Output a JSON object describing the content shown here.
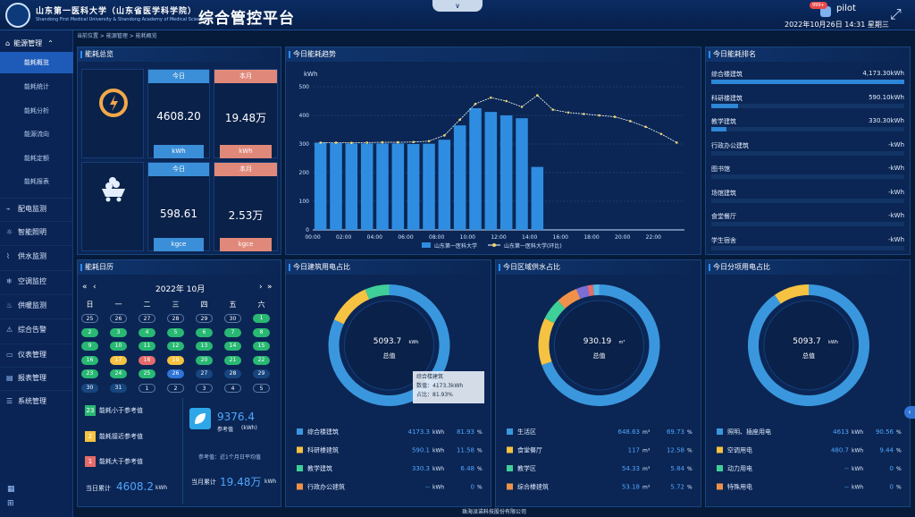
{
  "header": {
    "school_cn": "山东第一医科大学（山东省医学科学院）",
    "school_en": "Shandong First Medical University & Shandong Academy of Medical Sciences",
    "app_title": "综合管控平台",
    "dropdown": "∨",
    "badge": "999+",
    "user": "pilot",
    "datetime": "2022年10月26日 14:31 星期三",
    "fullscreen": "⤢"
  },
  "sidebar": {
    "top_menu": "能源管理",
    "subitems": [
      "能耗概览",
      "能耗统计",
      "能耗分析",
      "能源流向",
      "能耗定额",
      "能耗报表"
    ],
    "menus": [
      "配电监测",
      "智能照明",
      "供水监测",
      "空调监控",
      "供暖监测",
      "综合告警",
      "仪表管理",
      "报表管理",
      "系统管理"
    ],
    "icons": [
      "plug-icon",
      "bulb-icon",
      "faucet-icon",
      "snowflake-icon",
      "flame-icon",
      "alarm-icon",
      "meter-icon",
      "report-icon",
      "database-icon"
    ]
  },
  "breadcrumb": [
    "当前位置",
    "能源管理",
    "能耗概览"
  ],
  "overview": {
    "title": "能耗总览",
    "today": "今日",
    "month": "本月",
    "elec_today": "4608.20",
    "elec_month": "19.48万",
    "elec_unit": "kWh",
    "coal_today": "598.61",
    "coal_month": "2.53万",
    "coal_unit": "kgce"
  },
  "trend": {
    "title": "今日能耗趋势",
    "unit": "kWh",
    "legend_bar": "山东第一医科大学",
    "legend_line": "山东第一医科大学(环比)"
  },
  "chart_data": {
    "type": "bar",
    "title": "今日能耗趋势",
    "ylabel": "kWh",
    "ylim": [
      0,
      500
    ],
    "yticks": [
      0,
      100,
      200,
      300,
      400,
      500
    ],
    "xticks": [
      "00:00",
      "02:00",
      "04:00",
      "06:00",
      "08:00",
      "10:00",
      "12:00",
      "14:00",
      "16:00",
      "18:00",
      "20:00",
      "22:00"
    ],
    "series": [
      {
        "name": "山东第一医科大学",
        "type": "bar",
        "x": [
          0,
          1,
          2,
          3,
          4,
          5,
          6,
          7,
          8,
          9,
          10,
          11,
          12,
          13,
          14
        ],
        "values": [
          305,
          303,
          302,
          302,
          302,
          302,
          300,
          301,
          315,
          365,
          425,
          412,
          400,
          390,
          220
        ]
      },
      {
        "name": "山东第一医科大学(环比)",
        "type": "line",
        "x": [
          0,
          1,
          2,
          3,
          4,
          5,
          6,
          7,
          8,
          9,
          10,
          11,
          12,
          13,
          14,
          15,
          16,
          17,
          18,
          19,
          20,
          21,
          22,
          23
        ],
        "values": [
          305,
          305,
          304,
          305,
          306,
          306,
          307,
          310,
          330,
          385,
          440,
          462,
          450,
          430,
          470,
          420,
          410,
          405,
          400,
          395,
          380,
          360,
          335,
          305
        ]
      }
    ]
  },
  "ranking": {
    "title": "今日能耗排名",
    "rows": [
      {
        "name": "综合楼建筑",
        "value": "4,173.30kWh",
        "pct": 100
      },
      {
        "name": "科研楼建筑",
        "value": "590.10kWh",
        "pct": 14
      },
      {
        "name": "教学建筑",
        "value": "330.30kWh",
        "pct": 8
      },
      {
        "name": "行政办公建筑",
        "value": "-kWh",
        "pct": 0
      },
      {
        "name": "图书馆",
        "value": "-kWh",
        "pct": 0
      },
      {
        "name": "场馆建筑",
        "value": "-kWh",
        "pct": 0
      },
      {
        "name": "食堂餐厅",
        "value": "-kWh",
        "pct": 0
      },
      {
        "name": "学生宿舍",
        "value": "-kWh",
        "pct": 0
      }
    ]
  },
  "calendar": {
    "title": "能耗日历",
    "month": "2022年 10月",
    "nav_prev2": "«",
    "nav_prev": "‹",
    "nav_next": "›",
    "nav_next2": "»",
    "weekdays": [
      "日",
      "一",
      "二",
      "三",
      "四",
      "五",
      "六"
    ],
    "rows": [
      [
        "25",
        "26",
        "27",
        "28",
        "29",
        "30",
        "1"
      ],
      [
        "2",
        "3",
        "4",
        "5",
        "6",
        "7",
        "8"
      ],
      [
        "9",
        "10",
        "11",
        "12",
        "13",
        "14",
        "15"
      ],
      [
        "16",
        "17",
        "18",
        "19",
        "20",
        "21",
        "22"
      ],
      [
        "23",
        "24",
        "25",
        "26",
        "27",
        "28",
        "29"
      ],
      [
        "30",
        "31",
        "1",
        "2",
        "3",
        "4",
        "5"
      ]
    ],
    "states": [
      [
        "o",
        "o",
        "o",
        "o",
        "o",
        "o",
        "g"
      ],
      [
        "g",
        "g",
        "g",
        "g",
        "g",
        "g",
        "g"
      ],
      [
        "g",
        "g",
        "g",
        "g",
        "g",
        "g",
        "g"
      ],
      [
        "g",
        "y",
        "r",
        "y",
        "g",
        "g",
        "g"
      ],
      [
        "g",
        "g",
        "g",
        "b",
        "d",
        "d",
        "d"
      ],
      [
        "d",
        "d",
        "o",
        "o",
        "o",
        "o",
        "o"
      ]
    ],
    "legend_less": "能耗小于参考值",
    "legend_less_n": "23",
    "legend_near": "能耗接近参考值",
    "legend_near_n": "2",
    "legend_more": "能耗大于参考值",
    "legend_more_n": "1",
    "ref_value": "9376.4",
    "ref_label": "参考值",
    "ref_unit": "(kWh)",
    "ref_note": "参考值：近1个月日平均值",
    "day_total_label": "当日累计",
    "day_total": "4608.2",
    "day_unit": "kWh",
    "month_total_label": "当月累计",
    "month_total": "19.48万",
    "month_unit": "kWh"
  },
  "donut1": {
    "title": "今日建筑用电占比",
    "center_value": "5093.7",
    "center_unit": "kWh",
    "center_label": "总值",
    "tooltip_title": "综合楼建筑",
    "tooltip_value": "数值：4173.3kWh",
    "tooltip_pct": "占比：81.93%",
    "rows": [
      {
        "name": "综合楼建筑",
        "val": "4173.3",
        "unit": "kWh",
        "pct": "81.93",
        "color": "#3a97de"
      },
      {
        "name": "科研楼建筑",
        "val": "590.1",
        "unit": "kWh",
        "pct": "11.58",
        "color": "#f5c242"
      },
      {
        "name": "教学建筑",
        "val": "330.3",
        "unit": "kWh",
        "pct": "6.48",
        "color": "#3fcf98"
      },
      {
        "name": "行政办公建筑",
        "val": "--",
        "unit": "kWh",
        "pct": "0",
        "color": "#f0914a"
      }
    ]
  },
  "donut2": {
    "title": "今日区域供水占比",
    "center_value": "930.19",
    "center_unit": "m³",
    "center_label": "总值",
    "rows": [
      {
        "name": "生活区",
        "val": "648.63",
        "unit": "m³",
        "pct": "69.73",
        "color": "#3a97de"
      },
      {
        "name": "食堂餐厅",
        "val": "117",
        "unit": "m³",
        "pct": "12.58",
        "color": "#f5c242"
      },
      {
        "name": "教学区",
        "val": "54.33",
        "unit": "m³",
        "pct": "5.84",
        "color": "#3fcf98"
      },
      {
        "name": "综合楼建筑",
        "val": "53.18",
        "unit": "m³",
        "pct": "5.72",
        "color": "#f0914a"
      }
    ]
  },
  "donut3": {
    "title": "今日分项用电占比",
    "center_value": "5093.7",
    "center_unit": "kWh",
    "center_label": "总值",
    "rows": [
      {
        "name": "照明、插座用电",
        "val": "4613",
        "unit": "kWh",
        "pct": "90.56",
        "color": "#3a97de"
      },
      {
        "name": "空调用电",
        "val": "480.7",
        "unit": "kWh",
        "pct": "9.44",
        "color": "#f5c242"
      },
      {
        "name": "动力用电",
        "val": "--",
        "unit": "kWh",
        "pct": "0",
        "color": "#3fcf98"
      },
      {
        "name": "特殊用电",
        "val": "--",
        "unit": "kWh",
        "pct": "0",
        "color": "#f0914a"
      }
    ]
  },
  "footer": "珠海派诺科技股份有限公司",
  "collapse_btn": "‹"
}
